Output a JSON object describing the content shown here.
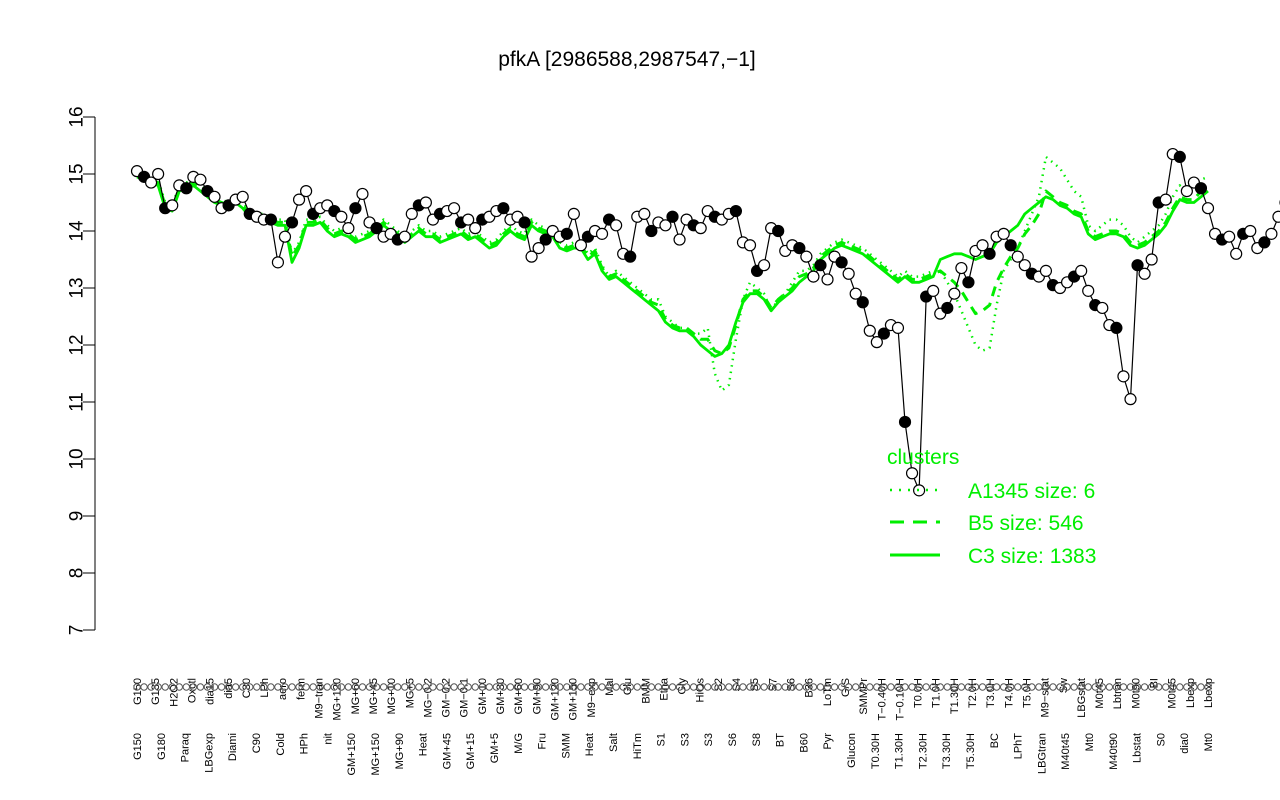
{
  "chart_data": {
    "type": "line",
    "title": "pfkA [2986588,2987547,−1]",
    "ylim": [
      7,
      16
    ],
    "yticks": [
      7,
      8,
      9,
      10,
      11,
      12,
      13,
      14,
      15,
      16
    ],
    "grid": false,
    "legend": {
      "title": "clusters",
      "placement": "right",
      "entries": [
        {
          "label": "A1345 size: 6",
          "style": "dotted"
        },
        {
          "label": "B5 size: 546",
          "style": "dashed"
        },
        {
          "label": "C3 size: 1383",
          "style": "solid"
        }
      ]
    },
    "x_labels_upper": [
      "G150",
      "G135",
      "H2O2",
      "Oxctl",
      "dia15",
      "dia5",
      "C30",
      "LPh",
      "aero",
      "ferm",
      "M9−tran",
      "MG+120",
      "MG+60",
      "MG+45",
      "MG+10",
      "MG+5",
      "MG−0.2",
      "GM−0.2",
      "GM−0.1",
      "GM+10",
      "GM+30",
      "GM+60",
      "GM+90",
      "GM+120",
      "GM+150",
      "M9−exp",
      "Mal",
      "Glu",
      "BMM",
      "Etha",
      "Gly",
      "HiOs",
      "S2",
      "S4",
      "S5",
      "S7",
      "S6",
      "B36",
      "LoTm",
      "G/S",
      "SMMPr",
      "T−0.40H",
      "T−0.10H",
      "T0.0H",
      "T1.0H",
      "T1.30H",
      "T2.0H",
      "T3.0H",
      "T4.0H",
      "T5.0H",
      "M9−stat",
      "Sw",
      "LBGstat",
      "M0t45",
      "Lbtran",
      "M0t90",
      "BI",
      "M0t45",
      "Lbexp",
      "Lbexp"
    ],
    "x_labels_lower": [
      "G150",
      "G180",
      "Paraq",
      "LBGexp",
      "Diami",
      "C90",
      "Cold",
      "HPh",
      "nit",
      "GM+150",
      "MG+150",
      "MG+90",
      "Heat",
      "GM+45",
      "GM+15",
      "GM+5",
      "M/G",
      "Fru",
      "SMM",
      "Heat",
      "Salt",
      "HiTm",
      "S1",
      "S3",
      "S3",
      "S6",
      "S8",
      "BT",
      "B60",
      "Pyr",
      "Glucon",
      "T0.30H",
      "T1.30H",
      "T2.30H",
      "T3.30H",
      "T5.30H",
      "BC",
      "LPhT",
      "LBGtran",
      "M40t45",
      "Mt0",
      "M40t90",
      "Lbstat",
      "S0",
      "dia0",
      "Mt0"
    ],
    "series": [
      {
        "name": "A1345 size: 6",
        "style": "dotted",
        "values": [
          15.1,
          15.0,
          14.95,
          14.9,
          14.5,
          14.45,
          14.8,
          14.85,
          14.9,
          14.8,
          14.7,
          14.6,
          14.55,
          14.5,
          14.6,
          14.5,
          14.35,
          14.3,
          14.3,
          14.25,
          14.2,
          14.2,
          13.6,
          13.8,
          14.2,
          14.2,
          14.25,
          14.1,
          14.0,
          14.05,
          14.0,
          13.9,
          13.95,
          14.0,
          14.1,
          14.2,
          14.1,
          14.0,
          13.9,
          14.0,
          14.1,
          14.0,
          14.0,
          13.9,
          13.95,
          14.0,
          14.05,
          13.95,
          14.0,
          13.9,
          13.8,
          13.85,
          14.0,
          14.1,
          14.0,
          13.95,
          14.2,
          14.1,
          14.05,
          14.0,
          13.8,
          13.75,
          13.8,
          13.8,
          13.6,
          13.7,
          13.4,
          13.2,
          13.3,
          13.2,
          13.1,
          13.0,
          12.9,
          12.8,
          12.8,
          12.5,
          12.4,
          12.3,
          12.3,
          12.2,
          12.2,
          12.3,
          11.5,
          11.2,
          11.3,
          12.1,
          12.8,
          13.1,
          13.0,
          12.9,
          12.6,
          12.8,
          12.9,
          13.1,
          13.3,
          13.3,
          13.4,
          13.6,
          13.7,
          13.8,
          13.85,
          13.8,
          13.75,
          13.7,
          13.6,
          13.5,
          13.4,
          13.3,
          13.2,
          13.3,
          13.2,
          13.2,
          13.25,
          13.3,
          13.3,
          13.1,
          12.9,
          12.6,
          12.3,
          12.0,
          11.9,
          11.95,
          12.7,
          13.3,
          13.5,
          13.7,
          14.0,
          14.3,
          14.6,
          15.3,
          15.2,
          15.1,
          14.9,
          14.7,
          14.6,
          14.1,
          14.0,
          14.1,
          14.2,
          14.2,
          14.1,
          13.9,
          13.8,
          13.9,
          14.0,
          14.1,
          14.3,
          14.6,
          14.8,
          14.7,
          14.7,
          14.9,
          14.95
        ]
      },
      {
        "name": "B5 size: 546",
        "style": "dashed",
        "values": [
          15.0,
          14.95,
          14.9,
          14.85,
          14.45,
          14.4,
          14.75,
          14.8,
          14.85,
          14.75,
          14.65,
          14.55,
          14.5,
          14.45,
          14.55,
          14.45,
          14.3,
          14.25,
          14.25,
          14.2,
          14.15,
          14.15,
          13.55,
          13.75,
          14.15,
          14.15,
          14.2,
          14.05,
          13.95,
          14.0,
          13.95,
          13.85,
          13.9,
          13.95,
          14.05,
          14.15,
          14.05,
          13.95,
          13.85,
          13.95,
          14.05,
          13.95,
          13.95,
          13.85,
          13.9,
          13.95,
          14.0,
          13.9,
          13.95,
          13.85,
          13.75,
          13.8,
          13.95,
          14.05,
          13.95,
          13.9,
          14.15,
          14.05,
          14.0,
          13.95,
          13.75,
          13.7,
          13.75,
          13.75,
          13.55,
          13.65,
          13.35,
          13.2,
          13.25,
          13.15,
          13.05,
          12.95,
          12.85,
          12.75,
          12.7,
          12.45,
          12.35,
          12.3,
          12.3,
          12.2,
          12.1,
          12.1,
          11.9,
          11.85,
          11.95,
          12.35,
          12.8,
          12.95,
          12.95,
          12.85,
          12.65,
          12.8,
          12.9,
          13.0,
          13.2,
          13.25,
          13.35,
          13.55,
          13.65,
          13.75,
          13.8,
          13.75,
          13.7,
          13.65,
          13.55,
          13.45,
          13.35,
          13.25,
          13.15,
          13.25,
          13.15,
          13.15,
          13.2,
          13.25,
          13.3,
          13.2,
          13.1,
          12.95,
          12.75,
          12.55,
          12.6,
          12.7,
          13.1,
          13.35,
          13.55,
          13.7,
          13.95,
          14.1,
          14.3,
          14.7,
          14.6,
          14.5,
          14.45,
          14.35,
          14.3,
          14.0,
          13.9,
          13.95,
          14.0,
          14.0,
          13.95,
          13.8,
          13.75,
          13.8,
          13.9,
          14.0,
          14.15,
          14.4,
          14.6,
          14.55,
          14.55,
          14.7,
          14.75
        ]
      },
      {
        "name": "C3 size: 1383",
        "style": "solid",
        "values": [
          14.95,
          14.9,
          14.85,
          14.8,
          14.4,
          14.35,
          14.7,
          14.75,
          14.8,
          14.7,
          14.6,
          14.5,
          14.45,
          14.4,
          14.5,
          14.4,
          14.25,
          14.2,
          14.2,
          14.15,
          14.1,
          14.1,
          13.45,
          13.7,
          14.1,
          14.1,
          14.15,
          14.0,
          13.9,
          13.95,
          13.9,
          13.8,
          13.85,
          13.9,
          14.0,
          14.1,
          14.0,
          13.9,
          13.8,
          13.9,
          14.0,
          13.9,
          13.9,
          13.8,
          13.85,
          13.9,
          13.95,
          13.85,
          13.9,
          13.8,
          13.7,
          13.75,
          13.9,
          14.0,
          13.9,
          13.85,
          14.1,
          14.0,
          13.95,
          13.9,
          13.7,
          13.65,
          13.7,
          13.7,
          13.5,
          13.6,
          13.3,
          13.15,
          13.2,
          13.1,
          13.0,
          12.9,
          12.8,
          12.7,
          12.6,
          12.4,
          12.3,
          12.25,
          12.25,
          12.15,
          12.0,
          11.9,
          11.8,
          11.85,
          12.0,
          12.4,
          12.75,
          12.9,
          12.9,
          12.8,
          12.6,
          12.75,
          12.85,
          12.95,
          13.1,
          13.2,
          13.3,
          13.5,
          13.6,
          13.7,
          13.75,
          13.7,
          13.65,
          13.6,
          13.5,
          13.4,
          13.3,
          13.2,
          13.1,
          13.2,
          13.1,
          13.1,
          13.15,
          13.2,
          13.5,
          13.55,
          13.6,
          13.6,
          13.55,
          13.5,
          13.55,
          13.6,
          13.8,
          13.9,
          14.0,
          14.1,
          14.3,
          14.4,
          14.5,
          14.6,
          14.55,
          14.45,
          14.4,
          14.3,
          14.25,
          13.95,
          13.85,
          13.9,
          13.95,
          13.95,
          13.9,
          13.75,
          13.7,
          13.75,
          13.85,
          13.95,
          14.1,
          14.35,
          14.55,
          14.5,
          14.5,
          14.6,
          14.7
        ]
      },
      {
        "name": "gene profile",
        "style": "points",
        "values": [
          15.05,
          14.95,
          14.85,
          15.0,
          14.4,
          14.45,
          14.8,
          14.75,
          14.95,
          14.9,
          14.7,
          14.6,
          14.4,
          14.45,
          14.55,
          14.6,
          14.3,
          14.25,
          14.2,
          14.2,
          13.45,
          13.9,
          14.15,
          14.55,
          14.7,
          14.3,
          14.4,
          14.45,
          14.35,
          14.25,
          14.05,
          14.4,
          14.65,
          14.15,
          14.05,
          13.9,
          13.95,
          13.85,
          13.9,
          14.3,
          14.45,
          14.5,
          14.2,
          14.3,
          14.35,
          14.4,
          14.15,
          14.2,
          14.05,
          14.2,
          14.25,
          14.35,
          14.4,
          14.2,
          14.25,
          14.15,
          13.55,
          13.7,
          13.85,
          14.0,
          13.9,
          13.95,
          14.3,
          13.75,
          13.9,
          14.0,
          13.95,
          14.2,
          14.1,
          13.6,
          13.55,
          14.25,
          14.3,
          14.0,
          14.15,
          14.1,
          14.25,
          13.85,
          14.2,
          14.1,
          14.05,
          14.35,
          14.25,
          14.2,
          14.3,
          14.35,
          13.8,
          13.75,
          13.3,
          13.4,
          14.05,
          14.0,
          13.65,
          13.75,
          13.7,
          13.55,
          13.2,
          13.4,
          13.15,
          13.55,
          13.45,
          13.25,
          12.9,
          12.75,
          12.25,
          12.05,
          12.2,
          12.35,
          12.3,
          10.65,
          9.75,
          9.45,
          12.85,
          12.95,
          12.55,
          12.65,
          12.9,
          13.35,
          13.1,
          13.65,
          13.75,
          13.6,
          13.9,
          13.95,
          13.75,
          13.55,
          13.4,
          13.25,
          13.2,
          13.3,
          13.05,
          13.0,
          13.1,
          13.2,
          13.3,
          12.95,
          12.7,
          12.65,
          12.35,
          12.3,
          11.45,
          11.05,
          13.4,
          13.25,
          13.5,
          14.5,
          14.55,
          15.35,
          15.3,
          14.7,
          14.85,
          14.75,
          14.4,
          13.95,
          13.85,
          13.9,
          13.6,
          13.95,
          14.0,
          13.7,
          13.8,
          13.95,
          14.25,
          14.5,
          14.9,
          14.7,
          14.95,
          14.9
        ]
      }
    ]
  }
}
